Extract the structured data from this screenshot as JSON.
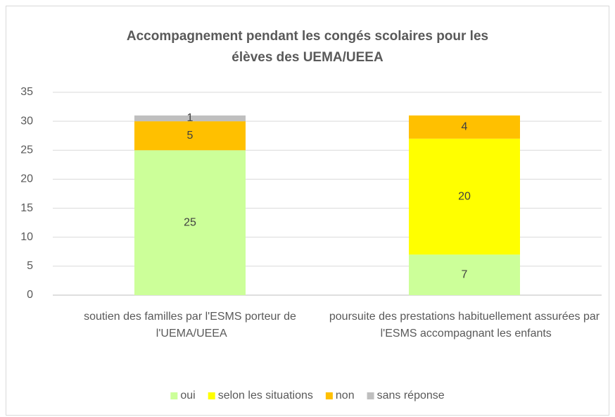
{
  "chart_data": {
    "type": "stacked_bar",
    "title": [
      "Accompagnement pendant les congés scolaires pour les",
      "élèves des UEMA/UEEA"
    ],
    "categories": [
      "soutien des familles par l'ESMS porteur de l'UEMA/UEEA",
      "poursuite des prestations habituellement assurées par l'ESMS accompagnant les enfants"
    ],
    "series": [
      {
        "name": "oui",
        "color": "#ccff99",
        "values": [
          25,
          7
        ]
      },
      {
        "name": "selon les situations",
        "color": "#ffff00",
        "values": [
          null,
          20
        ]
      },
      {
        "name": "non",
        "color": "#ffc000",
        "values": [
          5,
          4
        ]
      },
      {
        "name": "sans réponse",
        "color": "#bfbfbf",
        "values": [
          1,
          null
        ]
      }
    ],
    "ylim": [
      0,
      35
    ],
    "yticks": [
      0,
      5,
      10,
      15,
      20,
      25,
      30,
      35
    ],
    "grid": true,
    "legend": "bottom"
  }
}
